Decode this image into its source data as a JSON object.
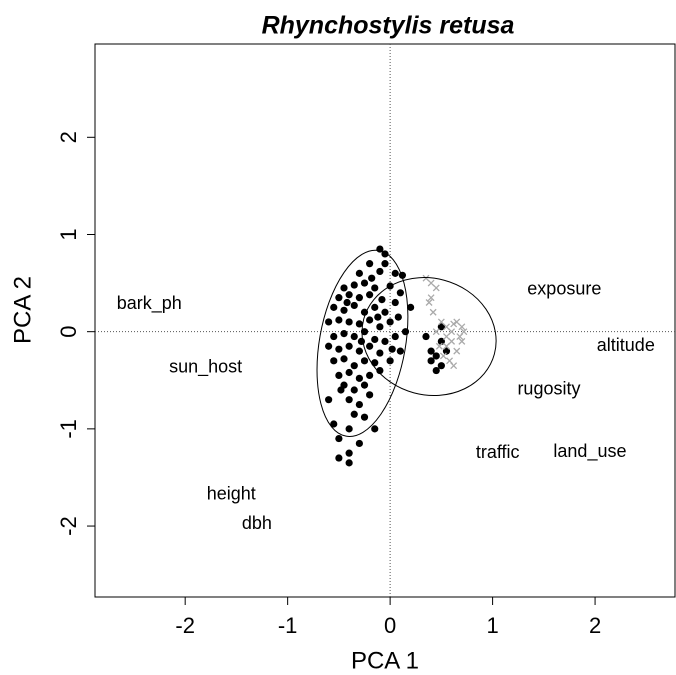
{
  "chart_data": {
    "type": "scatter",
    "title": "Rhynchostylis retusa",
    "x_label": "PCA 1",
    "y_label": "PCA 2",
    "xlim": [
      -2.88,
      2.78
    ],
    "ylim": [
      -2.73,
      2.96
    ],
    "xticks": [
      -2,
      -1,
      0,
      1,
      2
    ],
    "yticks": [
      -2,
      -1,
      0,
      1,
      2
    ],
    "reference_lines": {
      "x": 0,
      "y": 0
    },
    "series": [
      {
        "color": "#000000",
        "marker": "circle",
        "x": [
          -0.1,
          -0.05,
          -0.2,
          -0.3,
          -0.1,
          0.05,
          0.12,
          -0.45,
          -0.35,
          -0.25,
          -0.15,
          0.0,
          0.1,
          -0.5,
          -0.4,
          -0.3,
          -0.2,
          -0.08,
          0.05,
          -0.55,
          -0.45,
          -0.35,
          -0.25,
          -0.15,
          -0.05,
          0.08,
          0.2,
          -0.6,
          -0.5,
          -0.4,
          -0.3,
          -0.2,
          -0.1,
          0.0,
          0.15,
          -0.55,
          -0.45,
          -0.35,
          -0.25,
          -0.15,
          -0.05,
          0.05,
          -0.6,
          -0.5,
          -0.4,
          -0.3,
          -0.2,
          -0.1,
          0.1,
          -0.55,
          -0.45,
          -0.35,
          -0.25,
          -0.15,
          0.0,
          -0.5,
          -0.4,
          -0.3,
          -0.2,
          -0.1,
          -0.45,
          -0.35,
          -0.25,
          -0.6,
          -0.4,
          -0.3,
          -0.2,
          -0.35,
          -0.25,
          -0.55,
          -0.4,
          -0.15,
          -0.5,
          -0.3,
          -0.5,
          -0.4,
          -0.4,
          0.35,
          0.4,
          0.45,
          0.5,
          0.5,
          0.45,
          0.4,
          0.55,
          0.5,
          -0.05,
          -0.18,
          -0.42,
          -0.28,
          -0.12,
          0.02,
          -0.48
        ],
        "y": [
          0.85,
          0.8,
          0.7,
          0.6,
          0.62,
          0.6,
          0.58,
          0.45,
          0.48,
          0.5,
          0.45,
          0.47,
          0.4,
          0.35,
          0.38,
          0.35,
          0.38,
          0.33,
          0.3,
          0.25,
          0.22,
          0.27,
          0.2,
          0.25,
          0.2,
          0.15,
          0.25,
          0.1,
          0.12,
          0.1,
          0.08,
          0.12,
          0.05,
          0.1,
          0.0,
          -0.05,
          -0.02,
          -0.05,
          0.0,
          -0.08,
          -0.1,
          -0.05,
          -0.15,
          -0.18,
          -0.15,
          -0.2,
          -0.15,
          -0.22,
          -0.2,
          -0.3,
          -0.28,
          -0.35,
          -0.3,
          -0.32,
          -0.3,
          -0.45,
          -0.42,
          -0.48,
          -0.45,
          -0.4,
          -0.55,
          -0.6,
          -0.55,
          -0.7,
          -0.7,
          -0.75,
          -0.65,
          -0.85,
          -0.88,
          -0.95,
          -1.0,
          -1.0,
          -1.1,
          -1.15,
          -1.3,
          -1.35,
          -1.25,
          -0.05,
          -0.2,
          -0.25,
          -0.1,
          -0.35,
          -0.4,
          -0.3,
          -0.2,
          0.05,
          0.7,
          0.55,
          0.3,
          -0.1,
          0.15,
          -0.18,
          -0.6
        ]
      },
      {
        "color": "#aaaaaa",
        "marker": "cross",
        "x": [
          0.35,
          0.4,
          0.45,
          0.38,
          0.42,
          0.5,
          0.55,
          0.6,
          0.65,
          0.7,
          0.6,
          0.55,
          0.65,
          0.7,
          0.72,
          0.58,
          0.48,
          0.62,
          0.68,
          0.55,
          0.62,
          0.45,
          0.4,
          0.52
        ],
        "y": [
          0.55,
          0.5,
          0.45,
          0.3,
          0.2,
          0.1,
          0.05,
          0.0,
          0.1,
          0.05,
          -0.1,
          -0.15,
          -0.2,
          -0.1,
          0.0,
          -0.3,
          -0.15,
          0.08,
          -0.05,
          -0.05,
          -0.35,
          0.0,
          0.35,
          -0.25
        ]
      }
    ],
    "ellipses": [
      {
        "cx": -0.27,
        "cy": -0.12,
        "rx": 0.42,
        "ry": 0.97,
        "angle": 10
      },
      {
        "cx": 0.38,
        "cy": -0.05,
        "rx": 0.66,
        "ry": 0.6,
        "angle": 15
      }
    ],
    "annotations": [
      {
        "text": "bark_ph",
        "x": -2.35,
        "y": 0.28
      },
      {
        "text": "sun_host",
        "x": -1.8,
        "y": -0.37
      },
      {
        "text": "height",
        "x": -1.55,
        "y": -1.68
      },
      {
        "text": "dbh",
        "x": -1.3,
        "y": -1.98
      },
      {
        "text": "exposure",
        "x": 1.7,
        "y": 0.43
      },
      {
        "text": "altitude",
        "x": 2.3,
        "y": -0.15
      },
      {
        "text": "rugosity",
        "x": 1.55,
        "y": -0.6
      },
      {
        "text": "traffic",
        "x": 1.05,
        "y": -1.25
      },
      {
        "text": "land_use",
        "x": 1.95,
        "y": -1.24
      }
    ]
  }
}
